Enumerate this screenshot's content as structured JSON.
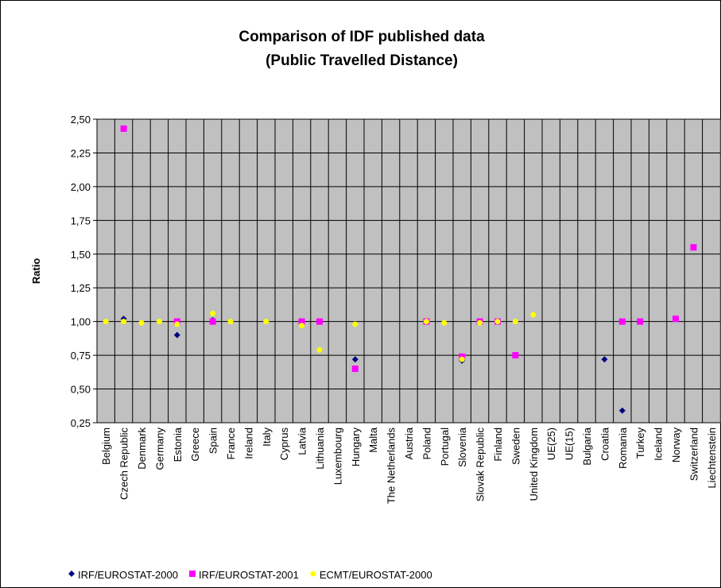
{
  "chart_data": {
    "type": "scatter",
    "title": [
      "Comparison of IDF published data",
      "(Public Travelled Distance)"
    ],
    "y_label": "Ratio",
    "categories": [
      "Belgium",
      "Czech Republic",
      "Denmark",
      "Germany",
      "Estonia",
      "Greece",
      "Spain",
      "France",
      "Ireland",
      "Italy",
      "Cyprus",
      "Latvia",
      "Lithuania",
      "Luxembourg",
      "Hungary",
      "Malta",
      "The Netherlands",
      "Austria",
      "Poland",
      "Portugal",
      "Slovenia",
      "Slovak Republic",
      "Finland",
      "Sweden",
      "United Kingdom",
      "UE(25)",
      "UE(15)",
      "Bulgaria",
      "Croatia",
      "Romania",
      "Turkey",
      "Iceland",
      "Norway",
      "Switzerland",
      "Liechtenstein"
    ],
    "series": [
      {
        "name": "IRF/EUROSTAT-2000",
        "color": "#000080",
        "marker": "diamond",
        "values": [
          null,
          1.02,
          null,
          null,
          0.9,
          null,
          1.01,
          null,
          null,
          null,
          null,
          1.0,
          1.0,
          null,
          0.72,
          null,
          null,
          null,
          1.0,
          null,
          0.71,
          1.0,
          1.0,
          null,
          null,
          null,
          null,
          null,
          0.72,
          0.34,
          1.0,
          null,
          1.02,
          1.55,
          null
        ]
      },
      {
        "name": "IRF/EUROSTAT-2001",
        "color": "#ff00ff",
        "marker": "square",
        "values": [
          null,
          2.43,
          null,
          null,
          1.0,
          null,
          1.0,
          null,
          null,
          null,
          null,
          1.0,
          1.0,
          null,
          0.65,
          null,
          null,
          null,
          1.0,
          null,
          0.74,
          1.0,
          1.0,
          0.75,
          null,
          null,
          null,
          null,
          null,
          1.0,
          1.0,
          null,
          1.02,
          1.55,
          null
        ]
      },
      {
        "name": "ECMT/EUROSTAT-2000",
        "color": "#ffff00",
        "marker": "circle",
        "values": [
          1.0,
          1.0,
          0.99,
          1.0,
          0.98,
          null,
          1.06,
          1.0,
          null,
          1.0,
          null,
          0.97,
          0.79,
          null,
          0.98,
          null,
          null,
          null,
          1.0,
          0.99,
          0.72,
          0.99,
          1.0,
          1.0,
          1.05,
          null,
          null,
          null,
          null,
          null,
          null,
          null,
          null,
          null,
          null
        ]
      }
    ],
    "ylim": [
      0.25,
      2.5
    ],
    "yticks": [
      {
        "value": 0.25,
        "label": "0,25"
      },
      {
        "value": 0.5,
        "label": "0,50"
      },
      {
        "value": 0.75,
        "label": "0,75"
      },
      {
        "value": 1,
        "label": "1,00"
      },
      {
        "value": 1.25,
        "label": "1,25"
      },
      {
        "value": 1.5,
        "label": "1,50"
      },
      {
        "value": 1.75,
        "label": "1,75"
      },
      {
        "value": 2,
        "label": "2,00"
      },
      {
        "value": 2.25,
        "label": "2,25"
      },
      {
        "value": 2.5,
        "label": "2,50"
      }
    ],
    "grid": true,
    "legend": "bottom",
    "plot_background": "#c0c0c0"
  }
}
